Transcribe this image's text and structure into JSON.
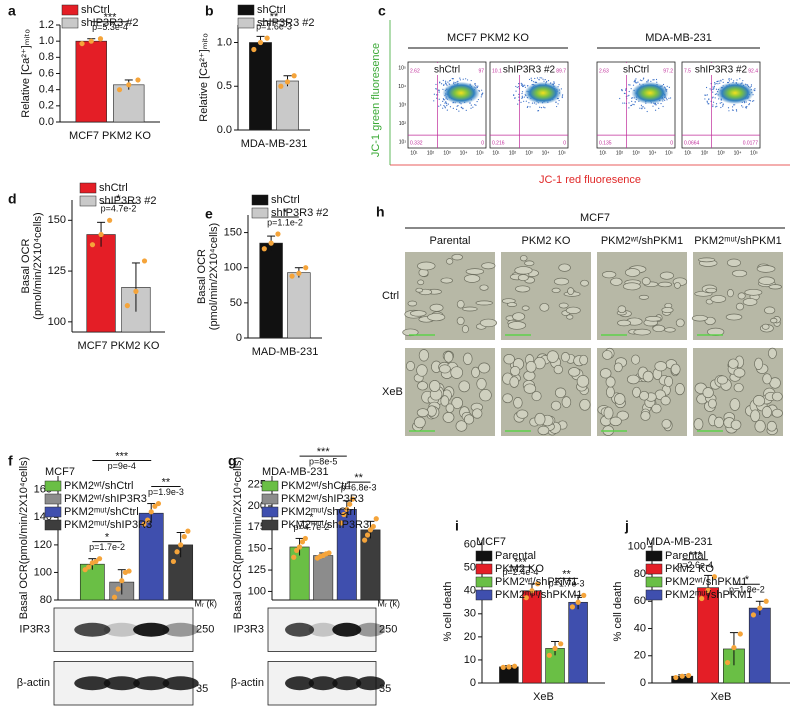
{
  "chart_data": [
    {
      "type": "bar",
      "label": "a",
      "categories": [
        "MCF7 PKM2 KO"
      ],
      "ylabel": "Relative [Ca²⁺]ₘᵢₜₒ",
      "ylim": [
        0,
        1.2
      ],
      "yticks": [
        {
          "value": 0,
          "label": "0.0"
        },
        0.2,
        0.4,
        0.6,
        0.8,
        {
          "value": 1,
          "label": "1.0"
        },
        1.2
      ],
      "series": [
        {
          "name": "shCtrl",
          "color": "#e41e26",
          "values": [
            1.0
          ],
          "errors": [
            0.03
          ],
          "points": [
            [
              0.97,
              1.0,
              1.03
            ]
          ]
        },
        {
          "name": "shIP3R3 #2",
          "color": "#c9c9c9",
          "values": [
            0.46
          ],
          "errors": [
            0.06
          ],
          "points": [
            [
              0.4,
              0.46,
              0.52
            ]
          ]
        }
      ],
      "annotations": [
        {
          "between": [
            0,
            1
          ],
          "stars": "***",
          "p": "p=5.3e-4"
        }
      ]
    },
    {
      "type": "bar",
      "label": "b",
      "categories": [
        "MDA-MB-231"
      ],
      "ylabel": "Relative [Ca²⁺]ₘᵢₜₒ",
      "ylim": [
        0,
        1.2
      ],
      "yticks": [
        {
          "value": 0,
          "label": "0.0"
        },
        0.5,
        {
          "value": 1,
          "label": "1.0"
        }
      ],
      "series": [
        {
          "name": "shCtrl",
          "color": "#111111",
          "values": [
            1.0
          ],
          "errors": [
            0.07
          ],
          "points": [
            [
              0.92,
              1.0,
              1.05
            ]
          ]
        },
        {
          "name": "shIP3R3 #2",
          "color": "#c9c9c9",
          "values": [
            0.56
          ],
          "errors": [
            0.06
          ],
          "points": [
            [
              0.5,
              0.55,
              0.62
            ]
          ]
        }
      ],
      "annotations": [
        {
          "between": [
            0,
            1
          ],
          "stars": "**",
          "p": "p=1.6e-3"
        }
      ]
    },
    {
      "type": "bar",
      "label": "d",
      "categories": [
        "MCF7 PKM2 KO"
      ],
      "ylabel": [
        "Basal OCR",
        "(pmol/min/2X10⁴cells)"
      ],
      "ylim": [
        95,
        160
      ],
      "yticks": [
        100,
        125,
        150
      ],
      "series": [
        {
          "name": "shCtrl",
          "color": "#e41e26",
          "values": [
            143
          ],
          "errors": [
            6
          ],
          "points": [
            [
              138,
              143,
              150
            ]
          ]
        },
        {
          "name": "shIP3R3 #2",
          "color": "#c9c9c9",
          "values": [
            117
          ],
          "errors": [
            12
          ],
          "points": [
            [
              108,
              115,
              130
            ]
          ]
        }
      ],
      "annotations": [
        {
          "between": [
            0,
            1
          ],
          "stars": "*",
          "p": "p=4.7e-2"
        }
      ]
    },
    {
      "type": "bar",
      "label": "e",
      "categories": [
        "MAD-MB-231"
      ],
      "ylabel": [
        "Basal OCR",
        "(pmol/min/2X10⁴cells)"
      ],
      "ylim": [
        0,
        175
      ],
      "yticks": [
        0,
        50,
        100,
        150
      ],
      "series": [
        {
          "name": "shCtrl",
          "color": "#111111",
          "values": [
            135
          ],
          "errors": [
            10
          ],
          "points": [
            [
              127,
              135,
              148
            ]
          ]
        },
        {
          "name": "shIP3R3 #2",
          "color": "#c9c9c9",
          "values": [
            93
          ],
          "errors": [
            7
          ],
          "points": [
            [
              88,
              92,
              100
            ]
          ]
        }
      ],
      "annotations": [
        {
          "between": [
            0,
            1
          ],
          "stars": "*",
          "p": "p=1.1e-2"
        }
      ]
    },
    {
      "type": "bar",
      "label": "f",
      "title": "MCF7",
      "categories": [
        null
      ],
      "ylabel": "Basal OCR(pmol/min/2X10⁴cells)",
      "ylim": [
        80,
        170
      ],
      "yticks": [
        80,
        100,
        120,
        140,
        160
      ],
      "series": [
        {
          "name": "PKM2ʷᵗ/shCtrl",
          "color": "#6abf45",
          "values": [
            106
          ],
          "errors": [
            4
          ],
          "points": [
            [
              102,
              104,
              107,
              108,
              110
            ]
          ]
        },
        {
          "name": "PKM2ʷᵗ/shIP3R3",
          "color": "#8c8c8c",
          "values": [
            93
          ],
          "errors": [
            9
          ],
          "points": [
            [
              82,
              88,
              94,
              100,
              101
            ]
          ]
        },
        {
          "name": "PKM2ᵐᵘᵗ/shCtrl",
          "color": "#3f4fae",
          "values": [
            143
          ],
          "errors": [
            7
          ],
          "points": [
            [
              135,
              138,
              144,
              148,
              150
            ]
          ]
        },
        {
          "name": "PKM2ᵐᵘᵗ/shIP3R3",
          "color": "#3d3d3d",
          "values": [
            120
          ],
          "errors": [
            9
          ],
          "points": [
            [
              108,
              115,
              120,
              126,
              130
            ]
          ]
        }
      ],
      "annotations": [
        {
          "between": [
            0,
            1
          ],
          "stars": "*",
          "p": "p=1.7e-2"
        },
        {
          "between": [
            2,
            3
          ],
          "stars": "**",
          "p": "p=1.9e-3"
        },
        {
          "between": [
            0,
            2
          ],
          "stars": "***",
          "p": "p=9e-4"
        }
      ],
      "blot": {
        "rows": [
          "IP3R3",
          "β-actin"
        ],
        "unit": "Mᵣ (k)",
        "markers": [
          250,
          35
        ]
      }
    },
    {
      "type": "bar",
      "label": "g",
      "title": "MDA-MB-231",
      "categories": [
        null
      ],
      "ylabel": "Basal OCR(pmol/min/2X10⁴cells)",
      "ylim": [
        90,
        235
      ],
      "yticks": [
        100,
        125,
        150,
        175,
        200,
        225
      ],
      "series": [
        {
          "name": "PKM2ʷᵗ/shCtrl",
          "color": "#6abf45",
          "values": [
            152
          ],
          "errors": [
            10
          ],
          "points": [
            [
              140,
              148,
              152,
              158,
              162
            ]
          ]
        },
        {
          "name": "PKM2ʷᵗ/shIP3R3",
          "color": "#8c8c8c",
          "values": [
            142
          ],
          "errors": [
            3
          ],
          "points": [
            [
              139,
              141,
              142,
              144,
              145
            ]
          ]
        },
        {
          "name": "PKM2ᵐᵘᵗ/shCtrl",
          "color": "#3f4fae",
          "values": [
            196
          ],
          "errors": [
            10
          ],
          "points": [
            [
              180,
              190,
              196,
              202,
              208
            ]
          ]
        },
        {
          "name": "PKM2ᵐᵘᵗ/shIP3R3",
          "color": "#3d3d3d",
          "values": [
            172
          ],
          "errors": [
            10
          ],
          "points": [
            [
              160,
              166,
              172,
              176,
              185
            ]
          ]
        }
      ],
      "annotations": [
        {
          "between": [
            0,
            1
          ],
          "stars": "*",
          "p": "p=4.7e-2"
        },
        {
          "between": [
            2,
            3
          ],
          "stars": "**",
          "p": "p=6.8e-3"
        },
        {
          "between": [
            0,
            2
          ],
          "stars": "***",
          "p": "p=8e-5"
        }
      ],
      "blot": {
        "rows": [
          "IP3R3",
          "β-actin"
        ],
        "unit": "Mᵣ (k)",
        "markers": [
          250,
          35
        ]
      }
    },
    {
      "type": "bar",
      "label": "i",
      "title": "MCF7",
      "categories": [
        "XeB"
      ],
      "ylabel": "% cell death",
      "ylim": [
        0,
        62
      ],
      "yticks": [
        0,
        10,
        20,
        30,
        40,
        50,
        60
      ],
      "series": [
        {
          "name": "Parental",
          "color": "#111111",
          "values": [
            7
          ],
          "errors": [
            0.5
          ],
          "points": [
            [
              6.8,
              7,
              7.3
            ]
          ]
        },
        {
          "name": "PKM2 KO",
          "color": "#e41e26",
          "values": [
            40
          ],
          "errors": [
            3
          ],
          "points": [
            [
              37,
              40,
              43
            ]
          ]
        },
        {
          "name": "PKM2ʷᵗ/shPKM1",
          "color": "#6abf45",
          "values": [
            15
          ],
          "errors": [
            3
          ],
          "points": [
            [
              12,
              15,
              17
            ]
          ]
        },
        {
          "name": "PKM2ᵐᵘᵗ/shPKM1",
          "color": "#3f4fae",
          "values": [
            35
          ],
          "errors": [
            3
          ],
          "points": [
            [
              33,
              35,
              38
            ]
          ]
        }
      ],
      "annotations": [
        {
          "between": [
            0,
            1
          ],
          "stars": "***",
          "p": "p=2.4e-4"
        },
        {
          "between": [
            2,
            3
          ],
          "stars": "**",
          "p": "p=1.7e-3"
        }
      ]
    },
    {
      "type": "bar",
      "label": "j",
      "title": "MDA-MB-231",
      "categories": [
        "XeB"
      ],
      "ylabel": "% cell death",
      "ylim": [
        0,
        105
      ],
      "yticks": [
        0,
        20,
        40,
        60,
        80,
        100
      ],
      "series": [
        {
          "name": "Parental",
          "color": "#111111",
          "values": [
            5
          ],
          "errors": [
            1
          ],
          "points": [
            [
              4,
              5,
              5.5
            ]
          ]
        },
        {
          "name": "PKM2 KO",
          "color": "#e41e26",
          "values": [
            70
          ],
          "errors": [
            9
          ],
          "points": [
            [
              62,
              68,
              78
            ]
          ]
        },
        {
          "name": "PKM2ʷᵗ/shPKM1",
          "color": "#6abf45",
          "values": [
            25
          ],
          "errors": [
            12
          ],
          "points": [
            [
              15,
              26,
              36
            ]
          ]
        },
        {
          "name": "PKM2ᵐᵘᵗ/shPKM1",
          "color": "#3f4fae",
          "values": [
            55
          ],
          "errors": [
            5
          ],
          "points": [
            [
              50,
              55,
              60
            ]
          ]
        }
      ],
      "annotations": [
        {
          "between": [
            0,
            1
          ],
          "stars": "***",
          "p": "p=2.6e-4"
        },
        {
          "between": [
            2,
            3
          ],
          "stars": "*",
          "p": "p=1.8e-2"
        }
      ]
    }
  ],
  "flow": {
    "label": "c",
    "xlabel": "JC-1 red fluoresence",
    "ylabel": "JC-1 green fluoresence",
    "ticks": [
      "10¹",
      "10²",
      "10³",
      "10⁴",
      "10⁵"
    ],
    "groups": [
      {
        "title": "MCF7 PKM2 KO",
        "plots": [
          {
            "name": "shCtrl",
            "quadrants": [
              2.62,
              97,
              0.332,
              0
            ]
          },
          {
            "name": "shIP3R3 #2",
            "quadrants": [
              10.1,
              89.7,
              0.216,
              0
            ]
          }
        ]
      },
      {
        "title": "MDA-MB-231",
        "plots": [
          {
            "name": "shCtrl",
            "quadrants": [
              2.63,
              97.2,
              0.135,
              0
            ]
          },
          {
            "name": "shIP3R3 #2",
            "quadrants": [
              7.5,
              92.4,
              0.0664,
              0.0177
            ]
          }
        ]
      }
    ]
  },
  "micro": {
    "label": "h",
    "title": "MCF7",
    "columns": [
      "Parental",
      "PKM2 KO",
      "PKM2ʷᵗ/shPKM1",
      "PKM2ᵐᵘᵗ/shPKM1"
    ],
    "rows": [
      "Ctrl",
      "XeB"
    ]
  }
}
